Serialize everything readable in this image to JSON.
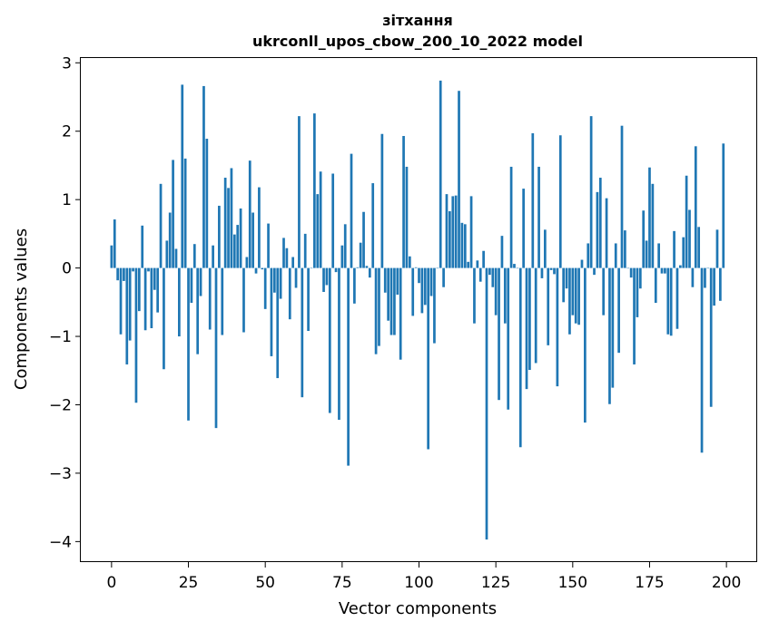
{
  "chart_data": {
    "type": "bar",
    "title": "зітхання",
    "subtitle": "ukrconll_upos_cbow_200_10_2022 model",
    "xlabel": "Vector components",
    "ylabel": "Components values",
    "xlim": [
      -10,
      210
    ],
    "ylim": [
      -4.3,
      3.07
    ],
    "xticks": [
      0,
      25,
      50,
      75,
      100,
      125,
      150,
      175,
      200
    ],
    "yticks": [
      -4,
      -3,
      -2,
      -1,
      0,
      1,
      2,
      3
    ],
    "bar_color": "#1f77b4",
    "values": [
      0.33,
      0.71,
      -0.18,
      -0.97,
      -0.19,
      -1.41,
      -1.06,
      -0.05,
      -1.97,
      -0.63,
      0.62,
      -0.91,
      -0.05,
      -0.88,
      -0.32,
      -0.65,
      1.23,
      -1.48,
      0.4,
      0.81,
      1.58,
      0.28,
      -1.0,
      2.68,
      1.6,
      -2.23,
      -0.51,
      0.35,
      -1.26,
      -0.41,
      2.66,
      1.89,
      -0.9,
      0.33,
      -2.34,
      0.91,
      -0.98,
      1.32,
      1.17,
      1.46,
      0.49,
      0.63,
      0.87,
      -0.94,
      0.16,
      1.57,
      0.81,
      -0.08,
      1.18,
      -0.02,
      -0.6,
      0.65,
      -1.29,
      -0.36,
      -1.61,
      -0.45,
      0.44,
      0.29,
      -0.75,
      0.16,
      -0.29,
      2.22,
      -1.89,
      0.5,
      -0.92,
      0.0,
      2.26,
      1.08,
      1.41,
      -0.35,
      -0.25,
      -2.12,
      1.38,
      -0.06,
      -2.22,
      0.33,
      0.64,
      -2.89,
      1.67,
      -0.52,
      0.01,
      0.37,
      0.82,
      0.03,
      -0.14,
      1.24,
      -1.26,
      -1.14,
      1.96,
      -0.36,
      -0.77,
      -0.98,
      -0.98,
      -0.39,
      -1.34,
      1.93,
      1.48,
      0.17,
      -0.7,
      0.01,
      -0.22,
      -0.66,
      -0.54,
      -2.65,
      -0.41,
      -1.1,
      0.0,
      2.74,
      -0.28,
      1.08,
      0.83,
      1.05,
      1.06,
      2.59,
      0.66,
      0.64,
      0.09,
      1.05,
      -0.81,
      0.11,
      -0.2,
      0.25,
      -3.97,
      -0.1,
      -0.28,
      -0.69,
      -1.93,
      0.47,
      -0.81,
      -2.07,
      1.48,
      0.06,
      0.0,
      -2.62,
      1.16,
      -1.77,
      -1.49,
      1.97,
      -1.39,
      1.48,
      -0.15,
      0.56,
      -1.13,
      -0.03,
      -0.09,
      -1.73,
      1.94,
      -0.5,
      -0.3,
      -0.97,
      -0.69,
      -0.81,
      -0.83,
      0.12,
      -2.26,
      0.36,
      2.22,
      -0.1,
      1.11,
      1.32,
      -0.69,
      1.02,
      -1.99,
      -1.75,
      0.36,
      -1.24,
      2.08,
      0.55,
      0.0,
      -0.14,
      -1.41,
      -0.72,
      -0.3,
      0.84,
      0.4,
      1.47,
      1.23,
      -0.51,
      0.36,
      -0.08,
      -0.08,
      -0.97,
      -0.99,
      0.54,
      -0.89,
      0.04,
      0.45,
      1.35,
      0.85,
      -0.28,
      1.78,
      0.6,
      -2.7,
      -0.29,
      0.0,
      -2.03,
      -0.55,
      0.56,
      -0.48,
      1.82
    ]
  }
}
